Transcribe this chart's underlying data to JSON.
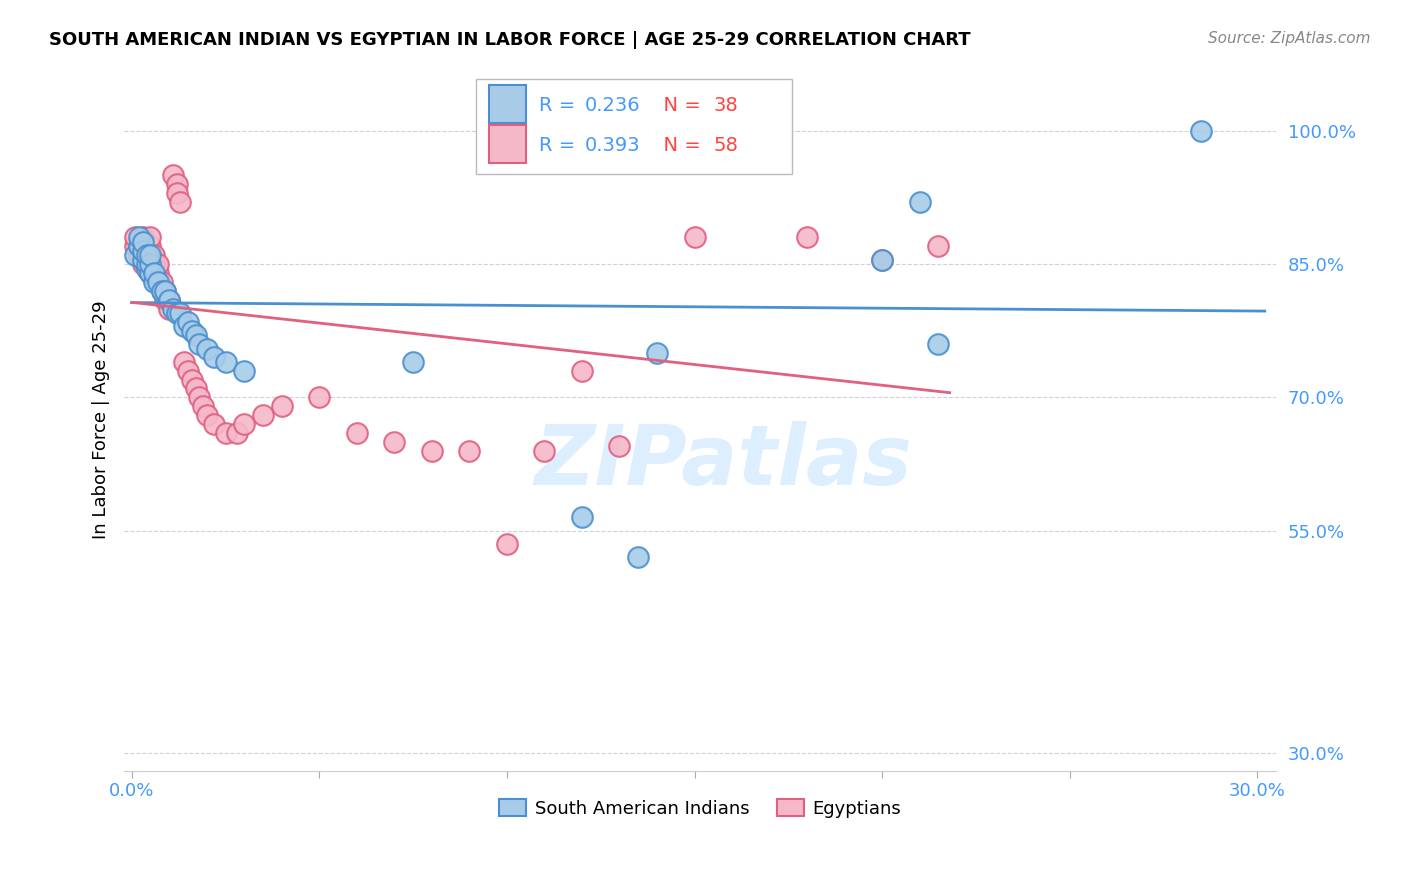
{
  "title": "SOUTH AMERICAN INDIAN VS EGYPTIAN IN LABOR FORCE | AGE 25-29 CORRELATION CHART",
  "source": "Source: ZipAtlas.com",
  "ylabel": "In Labor Force | Age 25-29",
  "xlim": [
    -0.002,
    0.305
  ],
  "ylim": [
    0.28,
    1.07
  ],
  "xtick_positions": [
    0.0,
    0.05,
    0.1,
    0.15,
    0.2,
    0.25,
    0.3
  ],
  "xtick_labels": [
    "0.0%",
    "",
    "",
    "",
    "",
    "",
    "30.0%"
  ],
  "ytick_positions": [
    0.3,
    0.55,
    0.7,
    0.85,
    1.0
  ],
  "ytick_labels": [
    "30.0%",
    "55.0%",
    "70.0%",
    "85.0%",
    "100.0%"
  ],
  "blue_R": 0.236,
  "blue_N": 38,
  "pink_R": 0.393,
  "pink_N": 58,
  "blue_color": "#a8cce8",
  "pink_color": "#f4b8c8",
  "blue_edge": "#4a90d0",
  "pink_edge": "#e06080",
  "line_blue_color": "#4a90d0",
  "line_pink_color": "#e06080",
  "tick_color": "#4499ff",
  "grid_color": "#cccccc",
  "watermark": "ZIPatlas",
  "watermark_color": "#ddeeff",
  "blue_x": [
    0.001,
    0.002,
    0.002,
    0.003,
    0.003,
    0.003,
    0.004,
    0.004,
    0.004,
    0.005,
    0.005,
    0.005,
    0.006,
    0.006,
    0.007,
    0.008,
    0.009,
    0.01,
    0.011,
    0.012,
    0.013,
    0.014,
    0.015,
    0.016,
    0.017,
    0.018,
    0.02,
    0.022,
    0.025,
    0.03,
    0.075,
    0.12,
    0.135,
    0.14,
    0.2,
    0.21,
    0.215,
    0.285
  ],
  "blue_y": [
    0.86,
    0.87,
    0.88,
    0.855,
    0.865,
    0.875,
    0.845,
    0.85,
    0.86,
    0.84,
    0.85,
    0.86,
    0.83,
    0.84,
    0.83,
    0.82,
    0.82,
    0.81,
    0.8,
    0.795,
    0.795,
    0.78,
    0.785,
    0.775,
    0.77,
    0.76,
    0.755,
    0.745,
    0.74,
    0.73,
    0.74,
    0.565,
    0.52,
    0.75,
    0.855,
    0.92,
    0.76,
    1.0
  ],
  "pink_x": [
    0.001,
    0.001,
    0.002,
    0.002,
    0.003,
    0.003,
    0.003,
    0.003,
    0.004,
    0.004,
    0.004,
    0.005,
    0.005,
    0.005,
    0.005,
    0.005,
    0.006,
    0.006,
    0.006,
    0.007,
    0.007,
    0.007,
    0.008,
    0.008,
    0.009,
    0.009,
    0.01,
    0.01,
    0.011,
    0.012,
    0.012,
    0.013,
    0.014,
    0.015,
    0.016,
    0.017,
    0.018,
    0.019,
    0.02,
    0.022,
    0.025,
    0.028,
    0.03,
    0.035,
    0.04,
    0.05,
    0.06,
    0.07,
    0.08,
    0.09,
    0.1,
    0.11,
    0.12,
    0.13,
    0.15,
    0.18,
    0.2,
    0.215
  ],
  "pink_y": [
    0.87,
    0.88,
    0.86,
    0.87,
    0.85,
    0.86,
    0.87,
    0.88,
    0.85,
    0.86,
    0.87,
    0.84,
    0.85,
    0.86,
    0.87,
    0.88,
    0.84,
    0.85,
    0.86,
    0.83,
    0.84,
    0.85,
    0.82,
    0.83,
    0.81,
    0.82,
    0.8,
    0.81,
    0.95,
    0.94,
    0.93,
    0.92,
    0.74,
    0.73,
    0.72,
    0.71,
    0.7,
    0.69,
    0.68,
    0.67,
    0.66,
    0.66,
    0.67,
    0.68,
    0.69,
    0.7,
    0.66,
    0.65,
    0.64,
    0.64,
    0.535,
    0.64,
    0.73,
    0.645,
    0.88,
    0.88,
    0.855,
    0.87
  ]
}
